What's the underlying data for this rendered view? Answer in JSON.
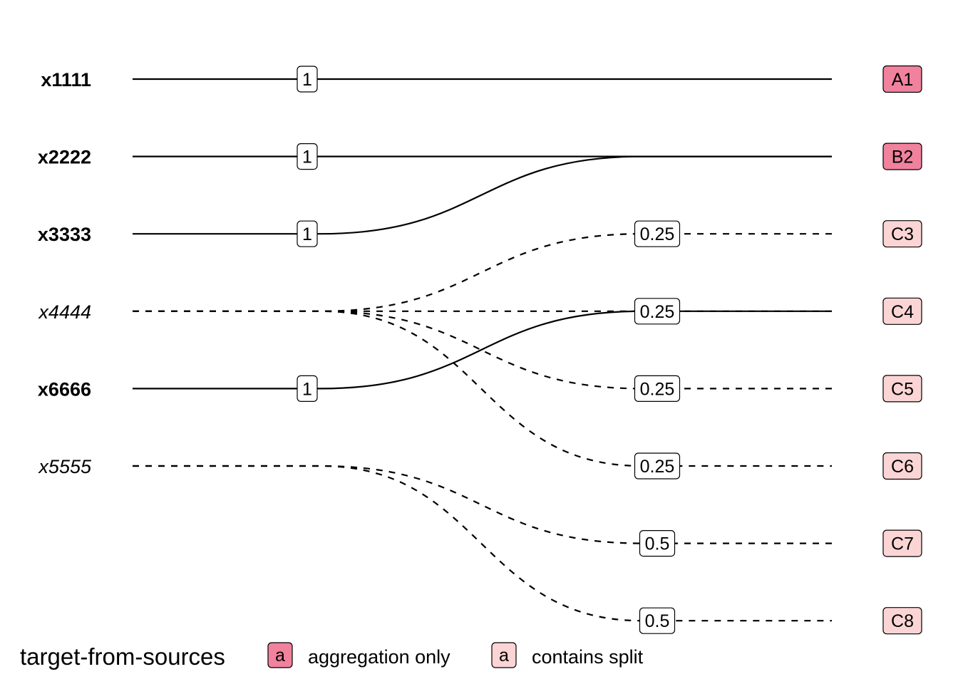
{
  "colors": {
    "aggregation_only": "#f0829d",
    "contains_split": "#fbd5d5",
    "line": "#000000"
  },
  "sources": [
    {
      "id": "x1111",
      "label": "x1111",
      "style": "bold"
    },
    {
      "id": "x2222",
      "label": "x2222",
      "style": "bold"
    },
    {
      "id": "x3333",
      "label": "x3333",
      "style": "bold"
    },
    {
      "id": "x4444",
      "label": "x4444",
      "style": "italic"
    },
    {
      "id": "x6666",
      "label": "x6666",
      "style": "bold"
    },
    {
      "id": "x5555",
      "label": "x5555",
      "style": "italic"
    }
  ],
  "targets": [
    {
      "id": "A1",
      "label": "A1",
      "type": "aggregation_only"
    },
    {
      "id": "B2",
      "label": "B2",
      "type": "aggregation_only"
    },
    {
      "id": "C3",
      "label": "C3",
      "type": "contains_split"
    },
    {
      "id": "C4",
      "label": "C4",
      "type": "contains_split"
    },
    {
      "id": "C5",
      "label": "C5",
      "type": "contains_split"
    },
    {
      "id": "C6",
      "label": "C6",
      "type": "contains_split"
    },
    {
      "id": "C7",
      "label": "C7",
      "type": "contains_split"
    },
    {
      "id": "C8",
      "label": "C8",
      "type": "contains_split"
    }
  ],
  "links": [
    {
      "source": "x1111",
      "target": "A1",
      "weight": "1",
      "dashed": false,
      "label_side": "source"
    },
    {
      "source": "x2222",
      "target": "B2",
      "weight": "1",
      "dashed": false,
      "label_side": "source"
    },
    {
      "source": "x3333",
      "target": "B2",
      "weight": "1",
      "dashed": false,
      "label_side": "source"
    },
    {
      "source": "x6666",
      "target": "C4",
      "weight": "1",
      "dashed": false,
      "label_side": "source"
    },
    {
      "source": "x4444",
      "target": "C3",
      "weight": "0.25",
      "dashed": true,
      "label_side": "target"
    },
    {
      "source": "x4444",
      "target": "C4",
      "weight": "0.25",
      "dashed": true,
      "label_side": "target"
    },
    {
      "source": "x4444",
      "target": "C5",
      "weight": "0.25",
      "dashed": true,
      "label_side": "target"
    },
    {
      "source": "x4444",
      "target": "C6",
      "weight": "0.25",
      "dashed": true,
      "label_side": "target"
    },
    {
      "source": "x5555",
      "target": "C7",
      "weight": "0.5",
      "dashed": true,
      "label_side": "target"
    },
    {
      "source": "x5555",
      "target": "C8",
      "weight": "0.5",
      "dashed": true,
      "label_side": "target"
    }
  ],
  "legend": {
    "title": "target-from-sources",
    "items": [
      {
        "key": "a",
        "label": "aggregation only",
        "type": "aggregation_only"
      },
      {
        "key": "a",
        "label": "contains split",
        "type": "contains_split"
      }
    ]
  }
}
